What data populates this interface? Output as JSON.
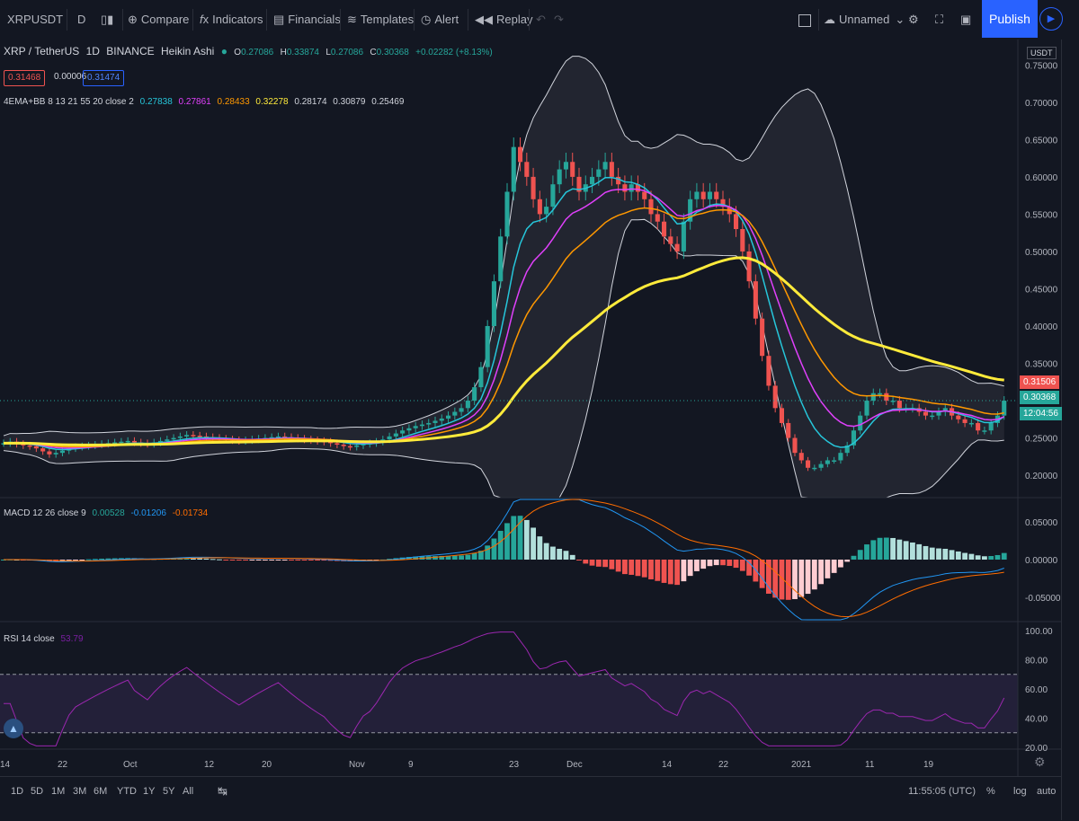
{
  "toolbar": {
    "symbol": "XRPUSDT",
    "interval": "D",
    "compare": "Compare",
    "indicators": "Indicators",
    "financials": "Financials",
    "templates": "Templates",
    "alert": "Alert",
    "replay": "Replay",
    "layout_name": "Unnamed",
    "publish": "Publish"
  },
  "legend": {
    "pair": "XRP / TetherUS",
    "interval": "1D",
    "exchange": "BINANCE",
    "chart_style": "Heikin Ashi",
    "open": "0.27086",
    "high": "0.33874",
    "low": "0.27086",
    "close": "0.30368",
    "change": "+0.02282 (+8.13%)",
    "bid": "0.31468",
    "spread": "0.00006",
    "ask": "0.31474"
  },
  "indicator_line": {
    "name": "4EMA+BB 8 13 21 55 20 close 2",
    "values": [
      "0.27838",
      "0.27861",
      "0.28433",
      "0.32278",
      "0.28174",
      "0.30879",
      "0.25469"
    ],
    "colors": [
      "#26c6da",
      "#e040fb",
      "#ff9800",
      "#ffeb3b",
      "#d1d4dc",
      "#d1d4dc",
      "#d1d4dc"
    ]
  },
  "macd": {
    "name": "MACD 12 26 close 9",
    "v1": "0.00528",
    "v2": "-0.01206",
    "v3": "-0.01734"
  },
  "rsi": {
    "name": "RSI 14 close",
    "value": "53.79"
  },
  "price_axis": {
    "unit": "USDT",
    "labels": [
      "0.75000",
      "0.70000",
      "0.65000",
      "0.60000",
      "0.55000",
      "0.50000",
      "0.45000",
      "0.40000",
      "0.35000",
      "0.30000",
      "0.25000",
      "0.20000"
    ],
    "badge_last": "0.31506",
    "badge_close": "0.30368",
    "badge_timer": "12:04:56"
  },
  "macd_axis": {
    "labels": [
      "0.05000",
      "0.00000",
      "-0.05000"
    ]
  },
  "rsi_axis": {
    "labels": [
      "100.00",
      "80.00",
      "60.00",
      "40.00",
      "20.00"
    ]
  },
  "time_axis": {
    "labels": [
      "14",
      "22",
      "Oct",
      "12",
      "20",
      "Nov",
      "9",
      "23",
      "Dec",
      "14",
      "22",
      "2021",
      "11",
      "19"
    ]
  },
  "bottom": {
    "ranges": [
      "1D",
      "5D",
      "1M",
      "3M",
      "6M",
      "YTD",
      "1Y",
      "5Y",
      "All"
    ],
    "clock": "11:55:05 (UTC)",
    "percent": "%",
    "log": "log",
    "auto": "auto"
  },
  "colors": {
    "bg": "#131722",
    "up": "#26a69a",
    "down": "#ef5350",
    "ema8": "#26c6da",
    "ema13": "#e040fb",
    "ema21": "#ff9800",
    "ema55": "#ffeb3b",
    "bb": "#d1d4dc",
    "rsi": "#9c27b0"
  },
  "chart_data": {
    "type": "candlestick",
    "title": "XRP / TetherUS 1D BINANCE Heikin Ashi",
    "x_ticks": [
      "14",
      "22",
      "Oct",
      "12",
      "20",
      "Nov",
      "9",
      "23",
      "Dec",
      "14",
      "22",
      "2021",
      "11",
      "19"
    ],
    "ylim": [
      0.17,
      0.76
    ],
    "close_series": [
      0.243,
      0.245,
      0.242,
      0.24,
      0.239,
      0.236,
      0.232,
      0.228,
      0.23,
      0.233,
      0.236,
      0.238,
      0.239,
      0.24,
      0.241,
      0.242,
      0.243,
      0.244,
      0.245,
      0.246,
      0.244,
      0.243,
      0.242,
      0.244,
      0.246,
      0.248,
      0.25,
      0.252,
      0.254,
      0.253,
      0.252,
      0.251,
      0.25,
      0.249,
      0.248,
      0.247,
      0.246,
      0.247,
      0.248,
      0.249,
      0.25,
      0.251,
      0.252,
      0.251,
      0.25,
      0.249,
      0.248,
      0.247,
      0.246,
      0.245,
      0.243,
      0.241,
      0.239,
      0.238,
      0.24,
      0.242,
      0.243,
      0.245,
      0.248,
      0.252,
      0.256,
      0.26,
      0.263,
      0.266,
      0.268,
      0.27,
      0.273,
      0.276,
      0.28,
      0.285,
      0.29,
      0.3,
      0.318,
      0.345,
      0.4,
      0.46,
      0.52,
      0.58,
      0.64,
      0.62,
      0.6,
      0.57,
      0.55,
      0.56,
      0.59,
      0.61,
      0.62,
      0.6,
      0.58,
      0.59,
      0.6,
      0.61,
      0.62,
      0.6,
      0.59,
      0.58,
      0.59,
      0.58,
      0.57,
      0.55,
      0.54,
      0.52,
      0.51,
      0.5,
      0.54,
      0.57,
      0.58,
      0.57,
      0.58,
      0.57,
      0.56,
      0.55,
      0.53,
      0.5,
      0.46,
      0.41,
      0.36,
      0.32,
      0.29,
      0.27,
      0.25,
      0.23,
      0.22,
      0.21,
      0.21,
      0.215,
      0.22,
      0.22,
      0.23,
      0.24,
      0.26,
      0.28,
      0.3,
      0.31,
      0.31,
      0.3,
      0.3,
      0.29,
      0.29,
      0.29,
      0.285,
      0.28,
      0.28,
      0.285,
      0.29,
      0.28,
      0.275,
      0.27,
      0.27,
      0.26,
      0.26,
      0.27,
      0.28,
      0.3
    ],
    "ema55_last": 0.32278,
    "bb_upper_last": 0.30879,
    "bb_lower_last": 0.25469,
    "macd_ylim": [
      -0.08,
      0.08
    ],
    "rsi_ylim": [
      20,
      100
    ],
    "rsi_levels": [
      70,
      30
    ]
  }
}
